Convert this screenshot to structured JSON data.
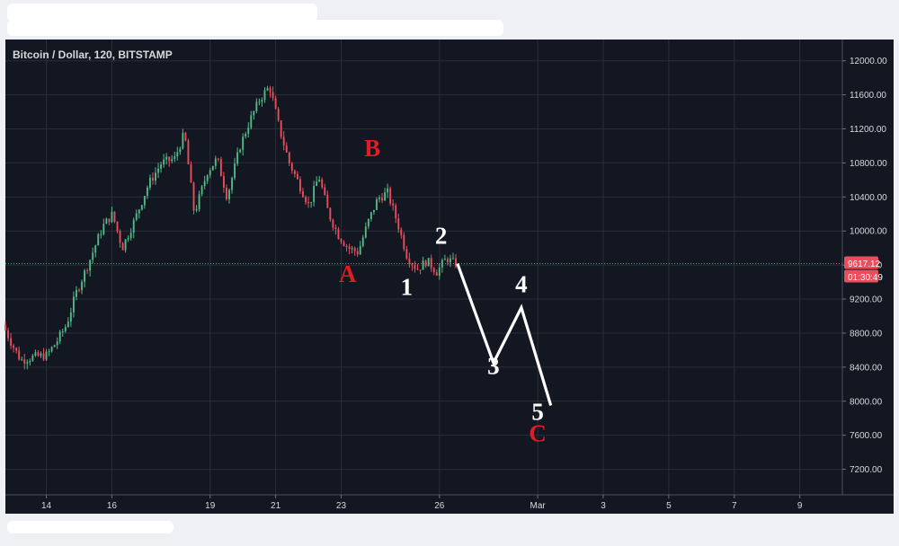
{
  "colors": {
    "background": "#131722",
    "grid": "#2a2e39",
    "up": "#53b987",
    "down": "#eb4d5c",
    "price_line": "#eb4d5c",
    "annotation_white": "#ffffff",
    "annotation_red": "#e31b23"
  },
  "chart_data": {
    "type": "candlestick",
    "title": "Bitcoin / Dollar, 120, BITSTAMP",
    "y_axis": {
      "side": "right",
      "range": [
        6900,
        12250
      ],
      "ticks": [
        "7200.00",
        "7600.00",
        "8000.00",
        "8400.00",
        "8800.00",
        "9200.00",
        "9600.00",
        "10000.00",
        "10400.00",
        "10800.00",
        "11200.00",
        "11600.00",
        "12000.00"
      ]
    },
    "x_axis": {
      "range_days": [
        12.75,
        38.3
      ],
      "ticks": [
        {
          "label": "14",
          "day": 14
        },
        {
          "label": "16",
          "day": 16
        },
        {
          "label": "19",
          "day": 19
        },
        {
          "label": "21",
          "day": 21
        },
        {
          "label": "23",
          "day": 23
        },
        {
          "label": "26",
          "day": 26
        },
        {
          "label": "Mar",
          "day": 29
        },
        {
          "label": "3",
          "day": 31
        },
        {
          "label": "5",
          "day": 33
        },
        {
          "label": "7",
          "day": 35
        },
        {
          "label": "9",
          "day": 37
        }
      ]
    },
    "grid": true,
    "current_price": {
      "price": 9617.12,
      "label": "9617.12",
      "countdown": "01:30:49"
    },
    "price_path_anchors": [
      [
        12.75,
        8900
      ],
      [
        13.0,
        8700
      ],
      [
        13.3,
        8480
      ],
      [
        13.7,
        8520
      ],
      [
        14.1,
        8540
      ],
      [
        14.4,
        8700
      ],
      [
        14.7,
        8900
      ],
      [
        15.0,
        9280
      ],
      [
        15.4,
        9650
      ],
      [
        15.8,
        10050
      ],
      [
        16.1,
        10200
      ],
      [
        16.4,
        9800
      ],
      [
        16.8,
        10150
      ],
      [
        17.2,
        10550
      ],
      [
        17.6,
        10800
      ],
      [
        18.0,
        10850
      ],
      [
        18.3,
        11150
      ],
      [
        18.6,
        10200
      ],
      [
        19.0,
        10700
      ],
      [
        19.3,
        10850
      ],
      [
        19.6,
        10400
      ],
      [
        20.0,
        11000
      ],
      [
        20.3,
        11300
      ],
      [
        20.6,
        11550
      ],
      [
        20.9,
        11700
      ],
      [
        21.2,
        11200
      ],
      [
        21.5,
        10800
      ],
      [
        21.8,
        10550
      ],
      [
        22.1,
        10300
      ],
      [
        22.4,
        10650
      ],
      [
        22.7,
        10200
      ],
      [
        23.0,
        9950
      ],
      [
        23.3,
        9800
      ],
      [
        23.6,
        9750
      ],
      [
        23.9,
        10100
      ],
      [
        24.2,
        10380
      ],
      [
        24.5,
        10450
      ],
      [
        24.8,
        10100
      ],
      [
        25.1,
        9700
      ],
      [
        25.4,
        9550
      ],
      [
        25.7,
        9650
      ],
      [
        26.0,
        9520
      ],
      [
        26.3,
        9680
      ],
      [
        26.55,
        9617.12
      ]
    ],
    "projection": [
      {
        "day": 26.55,
        "price": 9617.12
      },
      {
        "day": 27.65,
        "price": 8450
      },
      {
        "day": 28.5,
        "price": 9100
      },
      {
        "day": 29.4,
        "price": 7950
      }
    ],
    "annotations": [
      {
        "text": "A",
        "day": 23.2,
        "price": 9400,
        "color": "red"
      },
      {
        "text": "B",
        "day": 23.95,
        "price": 10880,
        "color": "red"
      },
      {
        "text": "1",
        "day": 25.0,
        "price": 9250,
        "color": "white"
      },
      {
        "text": "2",
        "day": 26.05,
        "price": 9850,
        "color": "white"
      },
      {
        "text": "3",
        "day": 27.65,
        "price": 8320,
        "color": "white"
      },
      {
        "text": "4",
        "day": 28.5,
        "price": 9280,
        "color": "white"
      },
      {
        "text": "5",
        "day": 29.0,
        "price": 7780,
        "color": "white"
      },
      {
        "text": "C",
        "day": 29.0,
        "price": 7530,
        "color": "red"
      }
    ]
  }
}
